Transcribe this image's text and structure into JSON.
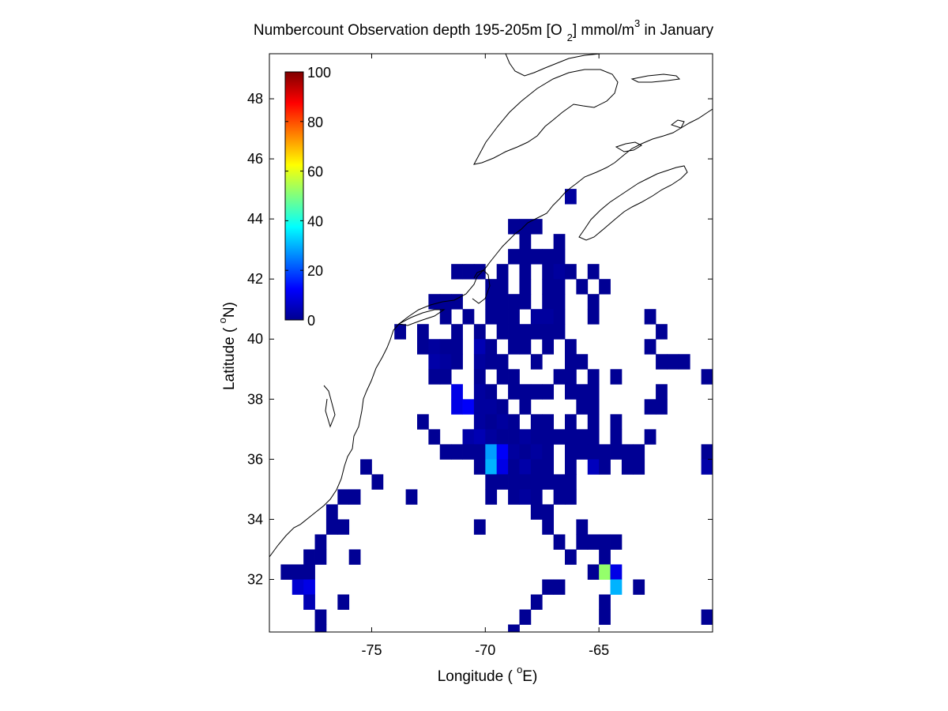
{
  "chart_data": {
    "type": "heatmap",
    "title": {
      "main": "Numbercount Observation depth 195-205m [O",
      "sub": "2",
      "unit": "] mmol/m",
      "sup": "3",
      "tail": " in January"
    },
    "xlabel": {
      "pre": "Longitude ( ",
      "sup": "o",
      "post": "E)"
    },
    "ylabel": {
      "pre": "Latitude ( ",
      "sup": "o",
      "post": "N)"
    },
    "xlim": [
      -79.5,
      -60
    ],
    "ylim": [
      30.25,
      49.5
    ],
    "xticks": [
      -75,
      -70,
      -65
    ],
    "yticks": [
      32,
      34,
      36,
      38,
      40,
      42,
      44,
      46,
      48
    ],
    "xtick_labels": [
      "-75",
      "-70",
      "-65"
    ],
    "ytick_labels": [
      "32",
      "34",
      "36",
      "38",
      "40",
      "42",
      "44",
      "46",
      "48"
    ],
    "cell_size_deg": 0.5,
    "colorbar": {
      "location": "inside top-left",
      "colormap": "jet",
      "range": [
        0,
        100
      ],
      "ticks": [
        0,
        20,
        40,
        60,
        80,
        100
      ],
      "tick_labels": [
        "0",
        "20",
        "40",
        "60",
        "80",
        "100"
      ]
    },
    "grid": false,
    "cells_note": "lon/lat are cell centers, value = observation count",
    "cells": [
      [
        -67.75,
        43.75,
        2
      ],
      [
        -68.25,
        43.75,
        2
      ],
      [
        -68.75,
        43.75,
        2
      ],
      [
        -66.25,
        44.75,
        3
      ],
      [
        -68.25,
        43.25,
        2
      ],
      [
        -66.75,
        43.25,
        2
      ],
      [
        -68.75,
        42.75,
        2
      ],
      [
        -68.25,
        42.75,
        2
      ],
      [
        -67.75,
        42.75,
        2
      ],
      [
        -67.25,
        42.75,
        2
      ],
      [
        -66.75,
        42.75,
        2
      ],
      [
        -71.25,
        42.25,
        2
      ],
      [
        -70.75,
        42.25,
        2
      ],
      [
        -70.25,
        42.25,
        2
      ],
      [
        -69.25,
        42.25,
        2
      ],
      [
        -68.25,
        42.25,
        2
      ],
      [
        -67.25,
        42.25,
        2
      ],
      [
        -66.75,
        42.25,
        3
      ],
      [
        -66.25,
        42.25,
        2
      ],
      [
        -65.25,
        42.25,
        2
      ],
      [
        -69.75,
        41.75,
        2
      ],
      [
        -69.25,
        41.75,
        2
      ],
      [
        -68.25,
        41.75,
        2
      ],
      [
        -67.25,
        41.75,
        2
      ],
      [
        -66.75,
        41.75,
        2
      ],
      [
        -65.75,
        41.75,
        2
      ],
      [
        -64.75,
        41.75,
        2
      ],
      [
        -72.25,
        41.25,
        2
      ],
      [
        -71.75,
        41.25,
        2
      ],
      [
        -71.25,
        41.25,
        2
      ],
      [
        -69.75,
        41.25,
        2
      ],
      [
        -69.25,
        41.25,
        2
      ],
      [
        -68.75,
        41.25,
        2
      ],
      [
        -68.25,
        41.25,
        2
      ],
      [
        -67.25,
        41.25,
        2
      ],
      [
        -66.75,
        41.25,
        2
      ],
      [
        -65.25,
        41.25,
        2
      ],
      [
        -71.75,
        40.75,
        2
      ],
      [
        -70.75,
        40.75,
        2
      ],
      [
        -69.75,
        40.75,
        2
      ],
      [
        -69.25,
        40.75,
        2
      ],
      [
        -68.75,
        40.75,
        2
      ],
      [
        -67.75,
        40.75,
        3
      ],
      [
        -67.25,
        40.75,
        3
      ],
      [
        -66.75,
        40.75,
        2
      ],
      [
        -65.25,
        40.75,
        2
      ],
      [
        -62.75,
        40.75,
        2
      ],
      [
        -73.75,
        40.25,
        2
      ],
      [
        -72.75,
        40.25,
        2
      ],
      [
        -71.25,
        40.25,
        2
      ],
      [
        -70.25,
        40.25,
        2
      ],
      [
        -69.25,
        40.25,
        2
      ],
      [
        -68.75,
        40.25,
        2
      ],
      [
        -68.25,
        40.25,
        2
      ],
      [
        -67.75,
        40.25,
        2
      ],
      [
        -67.25,
        40.25,
        2
      ],
      [
        -66.75,
        40.25,
        2
      ],
      [
        -62.25,
        40.25,
        2
      ],
      [
        -72.75,
        39.75,
        2
      ],
      [
        -72.25,
        39.75,
        3
      ],
      [
        -71.75,
        39.75,
        2
      ],
      [
        -71.25,
        39.75,
        2
      ],
      [
        -70.25,
        39.75,
        5
      ],
      [
        -69.75,
        39.75,
        2
      ],
      [
        -68.75,
        39.75,
        2
      ],
      [
        -68.25,
        39.75,
        2
      ],
      [
        -67.25,
        39.75,
        2
      ],
      [
        -66.25,
        39.75,
        2
      ],
      [
        -62.75,
        39.75,
        2
      ],
      [
        -72.25,
        39.25,
        4
      ],
      [
        -71.75,
        39.25,
        3
      ],
      [
        -71.25,
        39.25,
        2
      ],
      [
        -70.25,
        39.25,
        3
      ],
      [
        -69.75,
        39.25,
        2
      ],
      [
        -69.25,
        39.25,
        2
      ],
      [
        -67.75,
        39.25,
        2
      ],
      [
        -66.25,
        39.25,
        2
      ],
      [
        -65.75,
        39.25,
        2
      ],
      [
        -62.25,
        39.25,
        2
      ],
      [
        -61.75,
        39.25,
        2
      ],
      [
        -61.25,
        39.25,
        2
      ],
      [
        -72.25,
        38.75,
        2
      ],
      [
        -71.75,
        38.75,
        2
      ],
      [
        -70.25,
        38.75,
        2
      ],
      [
        -69.25,
        38.75,
        2
      ],
      [
        -68.75,
        38.75,
        2
      ],
      [
        -66.75,
        38.75,
        2
      ],
      [
        -66.25,
        38.75,
        2
      ],
      [
        -65.25,
        38.75,
        2
      ],
      [
        -64.25,
        38.75,
        2
      ],
      [
        -60.25,
        38.75,
        2
      ],
      [
        -71.25,
        38.25,
        10
      ],
      [
        -70.25,
        38.25,
        3
      ],
      [
        -69.75,
        38.25,
        2
      ],
      [
        -68.75,
        38.25,
        2
      ],
      [
        -68.25,
        38.25,
        2
      ],
      [
        -67.75,
        38.25,
        2
      ],
      [
        -67.25,
        38.25,
        2
      ],
      [
        -66.25,
        38.25,
        2
      ],
      [
        -65.75,
        38.25,
        2
      ],
      [
        -65.25,
        38.25,
        2
      ],
      [
        -62.25,
        38.25,
        2
      ],
      [
        -71.25,
        37.75,
        10
      ],
      [
        -70.75,
        37.75,
        12
      ],
      [
        -70.25,
        37.75,
        3
      ],
      [
        -69.75,
        37.75,
        3
      ],
      [
        -69.25,
        37.75,
        2
      ],
      [
        -68.25,
        37.75,
        2
      ],
      [
        -65.25,
        37.75,
        2
      ],
      [
        -65.75,
        37.75,
        2
      ],
      [
        -62.75,
        37.75,
        2
      ],
      [
        -62.25,
        37.75,
        2
      ],
      [
        -72.75,
        37.25,
        2
      ],
      [
        -70.25,
        37.25,
        3
      ],
      [
        -69.75,
        37.25,
        2
      ],
      [
        -69.25,
        37.25,
        3
      ],
      [
        -68.75,
        37.25,
        2
      ],
      [
        -67.75,
        37.25,
        2
      ],
      [
        -67.25,
        37.25,
        2
      ],
      [
        -66.25,
        37.25,
        2
      ],
      [
        -65.25,
        37.25,
        2
      ],
      [
        -64.25,
        37.25,
        2
      ],
      [
        -72.25,
        36.75,
        2
      ],
      [
        -70.75,
        36.75,
        4
      ],
      [
        -70.25,
        36.75,
        5
      ],
      [
        -69.75,
        36.75,
        3
      ],
      [
        -69.25,
        36.75,
        2
      ],
      [
        -68.75,
        36.75,
        2
      ],
      [
        -68.25,
        36.75,
        3
      ],
      [
        -67.75,
        36.75,
        2
      ],
      [
        -67.25,
        36.75,
        2
      ],
      [
        -66.75,
        36.75,
        2
      ],
      [
        -66.25,
        36.75,
        2
      ],
      [
        -65.75,
        36.75,
        2
      ],
      [
        -65.25,
        36.75,
        2
      ],
      [
        -64.25,
        36.75,
        2
      ],
      [
        -62.75,
        36.75,
        2
      ],
      [
        -71.75,
        36.25,
        2
      ],
      [
        -71.25,
        36.25,
        2
      ],
      [
        -70.75,
        36.25,
        2
      ],
      [
        -70.25,
        36.25,
        2
      ],
      [
        -69.75,
        36.25,
        28
      ],
      [
        -69.25,
        36.25,
        12
      ],
      [
        -68.75,
        36.25,
        3
      ],
      [
        -68.25,
        36.25,
        2
      ],
      [
        -67.75,
        36.25,
        3
      ],
      [
        -67.25,
        36.25,
        2
      ],
      [
        -66.25,
        36.25,
        2
      ],
      [
        -65.75,
        36.25,
        2
      ],
      [
        -65.25,
        36.25,
        2
      ],
      [
        -64.75,
        36.25,
        2
      ],
      [
        -64.25,
        36.25,
        2
      ],
      [
        -63.75,
        36.25,
        2
      ],
      [
        -63.25,
        36.25,
        2
      ],
      [
        -60.25,
        36.25,
        2
      ],
      [
        -75.25,
        35.75,
        2
      ],
      [
        -70.25,
        35.75,
        2
      ],
      [
        -69.75,
        35.75,
        30
      ],
      [
        -69.25,
        35.75,
        10
      ],
      [
        -68.75,
        35.75,
        2
      ],
      [
        -68.25,
        35.75,
        4
      ],
      [
        -67.75,
        35.75,
        2
      ],
      [
        -67.25,
        35.75,
        2
      ],
      [
        -66.25,
        35.75,
        2
      ],
      [
        -65.25,
        35.75,
        6
      ],
      [
        -64.75,
        35.75,
        2
      ],
      [
        -63.75,
        35.75,
        2
      ],
      [
        -63.25,
        35.75,
        2
      ],
      [
        -60.25,
        35.75,
        4
      ],
      [
        -74.75,
        35.25,
        2
      ],
      [
        -69.75,
        35.25,
        2
      ],
      [
        -69.25,
        35.25,
        2
      ],
      [
        -68.75,
        35.25,
        2
      ],
      [
        -68.25,
        35.25,
        2
      ],
      [
        -67.75,
        35.25,
        2
      ],
      [
        -67.25,
        35.25,
        2
      ],
      [
        -66.75,
        35.25,
        2
      ],
      [
        -66.25,
        35.25,
        2
      ],
      [
        -76.25,
        34.75,
        2
      ],
      [
        -75.75,
        34.75,
        2
      ],
      [
        -73.25,
        34.75,
        2
      ],
      [
        -69.75,
        34.75,
        2
      ],
      [
        -68.75,
        34.75,
        2
      ],
      [
        -68.25,
        34.75,
        3
      ],
      [
        -67.75,
        34.75,
        2
      ],
      [
        -66.75,
        34.75,
        2
      ],
      [
        -66.25,
        34.75,
        2
      ],
      [
        -76.75,
        34.25,
        2
      ],
      [
        -67.75,
        34.25,
        2
      ],
      [
        -67.25,
        34.25,
        2
      ],
      [
        -76.75,
        33.75,
        2
      ],
      [
        -76.25,
        33.75,
        2
      ],
      [
        -70.25,
        33.75,
        2
      ],
      [
        -67.25,
        33.75,
        2
      ],
      [
        -65.75,
        33.75,
        2
      ],
      [
        -77.25,
        33.25,
        2
      ],
      [
        -66.75,
        33.25,
        2
      ],
      [
        -65.75,
        33.25,
        2
      ],
      [
        -65.25,
        33.25,
        2
      ],
      [
        -64.75,
        33.25,
        2
      ],
      [
        -64.25,
        33.25,
        2
      ],
      [
        -77.75,
        32.75,
        2
      ],
      [
        -77.25,
        32.75,
        2
      ],
      [
        -75.75,
        32.75,
        2
      ],
      [
        -66.25,
        32.75,
        2
      ],
      [
        -64.75,
        32.75,
        2
      ],
      [
        -78.75,
        32.25,
        2
      ],
      [
        -78.25,
        32.25,
        2
      ],
      [
        -77.75,
        32.25,
        2
      ],
      [
        -65.25,
        32.25,
        2
      ],
      [
        -64.75,
        32.25,
        52
      ],
      [
        -64.25,
        32.25,
        10
      ],
      [
        -78.25,
        31.75,
        8
      ],
      [
        -77.75,
        31.75,
        10
      ],
      [
        -67.25,
        31.75,
        2
      ],
      [
        -66.75,
        31.75,
        2
      ],
      [
        -64.25,
        31.75,
        30
      ],
      [
        -63.25,
        31.75,
        2
      ],
      [
        -77.75,
        31.25,
        5
      ],
      [
        -76.25,
        31.25,
        2
      ],
      [
        -67.75,
        31.25,
        2
      ],
      [
        -64.75,
        31.25,
        2
      ],
      [
        -77.25,
        30.75,
        2
      ],
      [
        -68.25,
        30.75,
        2
      ],
      [
        -64.75,
        30.75,
        2
      ],
      [
        -60.25,
        30.75,
        2
      ],
      [
        -77.25,
        30.25,
        2
      ],
      [
        -68.75,
        30.25,
        2
      ]
    ]
  }
}
